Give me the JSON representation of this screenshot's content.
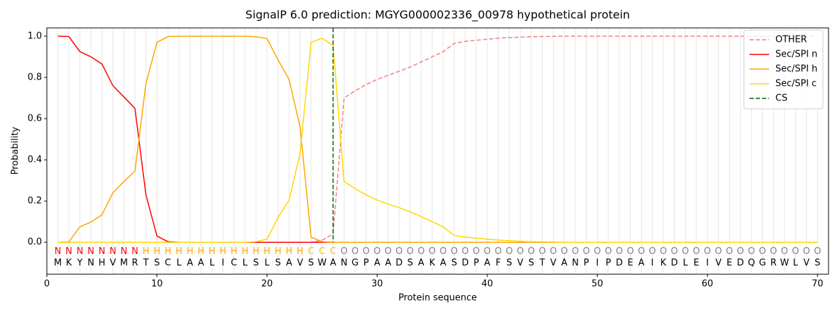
{
  "chart_data": {
    "type": "line",
    "title": "SignalP 6.0 prediction: MGYG000002336_00978 hypothetical protein",
    "x_label": "Protein sequence",
    "y_label": "Probability",
    "x": [
      1,
      2,
      3,
      4,
      5,
      6,
      7,
      8,
      9,
      10,
      11,
      12,
      13,
      14,
      15,
      16,
      17,
      18,
      19,
      20,
      21,
      22,
      23,
      24,
      25,
      26,
      27,
      28,
      29,
      30,
      31,
      32,
      33,
      34,
      35,
      36,
      37,
      38,
      39,
      40,
      41,
      42,
      43,
      44,
      45,
      46,
      47,
      48,
      49,
      50,
      51,
      52,
      53,
      54,
      55,
      56,
      57,
      58,
      59,
      60,
      61,
      62,
      63,
      64,
      65,
      66,
      67,
      68,
      69,
      70
    ],
    "series": [
      {
        "name": "OTHER",
        "color": "#f08080",
        "dashed": true,
        "values": [
          0,
          0,
          0,
          0,
          0,
          0,
          0,
          0,
          0,
          0,
          0,
          0,
          0,
          0,
          0,
          0,
          0,
          0,
          0,
          0,
          0,
          0,
          0,
          0,
          0.01,
          0.04,
          0.7,
          0.735,
          0.765,
          0.79,
          0.81,
          0.83,
          0.85,
          0.875,
          0.9,
          0.925,
          0.965,
          0.975,
          0.98,
          0.985,
          0.99,
          0.993,
          0.995,
          0.997,
          0.998,
          0.999,
          1,
          1,
          1,
          1,
          1,
          1,
          1,
          1,
          1,
          1,
          1,
          1,
          1,
          1,
          1,
          1,
          1,
          1,
          1,
          1,
          1,
          1,
          1,
          1
        ]
      },
      {
        "name": "Sec/SPI n",
        "color": "#ff0000",
        "dashed": false,
        "values": [
          1,
          0.998,
          0.925,
          0.9,
          0.865,
          0.76,
          0.705,
          0.65,
          0.23,
          0.03,
          0.003,
          0,
          0,
          0,
          0,
          0,
          0,
          0,
          0,
          0,
          0,
          0,
          0,
          0,
          0,
          0,
          0,
          0,
          0,
          0,
          0,
          0,
          0,
          0,
          0,
          0,
          0,
          0,
          0,
          0,
          0,
          0,
          0,
          0,
          0,
          0,
          0,
          0,
          0,
          0,
          0,
          0,
          0,
          0,
          0,
          0,
          0,
          0,
          0,
          0,
          0,
          0,
          0,
          0,
          0,
          0,
          0,
          0,
          0,
          0
        ]
      },
      {
        "name": "Sec/SPI h",
        "color": "#ffa500",
        "dashed": false,
        "values": [
          0,
          0.002,
          0.075,
          0.098,
          0.133,
          0.24,
          0.295,
          0.345,
          0.77,
          0.97,
          0.998,
          1,
          1,
          1,
          1,
          1,
          1,
          1,
          0.997,
          0.988,
          0.885,
          0.79,
          0.56,
          0.025,
          0.003,
          0,
          0,
          0,
          0,
          0,
          0,
          0,
          0,
          0,
          0,
          0,
          0,
          0,
          0,
          0,
          0,
          0,
          0,
          0,
          0,
          0,
          0,
          0,
          0,
          0,
          0,
          0,
          0,
          0,
          0,
          0,
          0,
          0,
          0,
          0,
          0,
          0,
          0,
          0,
          0,
          0,
          0,
          0,
          0,
          0
        ]
      },
      {
        "name": "Sec/SPI c",
        "color": "#ffd700",
        "dashed": false,
        "values": [
          0,
          0,
          0,
          0,
          0,
          0,
          0,
          0,
          0,
          0,
          0,
          0,
          0,
          0,
          0,
          0,
          0,
          0,
          0.003,
          0.015,
          0.12,
          0.205,
          0.43,
          0.97,
          0.99,
          0.955,
          0.295,
          0.26,
          0.23,
          0.205,
          0.185,
          0.168,
          0.148,
          0.125,
          0.1,
          0.075,
          0.033,
          0.025,
          0.02,
          0.015,
          0.011,
          0.008,
          0.005,
          0.003,
          0.002,
          0.001,
          0,
          0,
          0,
          0,
          0,
          0,
          0,
          0,
          0,
          0,
          0,
          0,
          0,
          0,
          0,
          0,
          0,
          0,
          0,
          0,
          0,
          0,
          0,
          0
        ]
      }
    ],
    "cs": {
      "name": "CS",
      "x": 26,
      "color": "#006400"
    },
    "region_labels": [
      "N",
      "N",
      "N",
      "N",
      "N",
      "N",
      "N",
      "N",
      "H",
      "H",
      "H",
      "H",
      "H",
      "H",
      "H",
      "H",
      "H",
      "H",
      "H",
      "H",
      "H",
      "H",
      "H",
      "C",
      "C",
      "C",
      "O",
      "O",
      "O",
      "O",
      "O",
      "O",
      "O",
      "O",
      "O",
      "O",
      "O",
      "O",
      "O",
      "O",
      "O",
      "O",
      "O",
      "O",
      "O",
      "O",
      "O",
      "O",
      "O",
      "O",
      "O",
      "O",
      "O",
      "O",
      "O",
      "O",
      "O",
      "O",
      "O",
      "O",
      "O",
      "O",
      "O",
      "O",
      "O",
      "O",
      "O",
      "O",
      "O",
      "O"
    ],
    "region_colors": {
      "N": "#ff0000",
      "H": "#ffa500",
      "C": "#ffc000",
      "O": "#808080"
    },
    "sequence": [
      "M",
      "K",
      "Y",
      "N",
      "H",
      "V",
      "M",
      "R",
      "T",
      "S",
      "C",
      "L",
      "A",
      "A",
      "L",
      "I",
      "C",
      "L",
      "S",
      "L",
      "S",
      "A",
      "V",
      "S",
      "W",
      "A",
      "N",
      "G",
      "P",
      "A",
      "A",
      "D",
      "S",
      "A",
      "K",
      "A",
      "S",
      "D",
      "P",
      "A",
      "F",
      "S",
      "V",
      "S",
      "T",
      "V",
      "A",
      "N",
      "P",
      "I",
      "P",
      "D",
      "E",
      "A",
      "I",
      "K",
      "D",
      "L",
      "E",
      "I",
      "V",
      "E",
      "D",
      "Q",
      "G",
      "R",
      "W",
      "L",
      "V",
      "S"
    ],
    "xlim": [
      0,
      71
    ],
    "ylim": [
      -0.155,
      1.04
    ],
    "xticks": [
      0,
      10,
      20,
      30,
      40,
      50,
      60,
      70
    ],
    "yticks": [
      {
        "value": 0,
        "label": "0.0"
      },
      {
        "value": 0.2,
        "label": "0.2"
      },
      {
        "value": 0.4,
        "label": "0.4"
      },
      {
        "value": 0.6,
        "label": "0.6"
      },
      {
        "value": 0.8,
        "label": "0.8"
      },
      {
        "value": 1,
        "label": "1.0"
      }
    ],
    "legend": "upper right",
    "grid": true
  }
}
